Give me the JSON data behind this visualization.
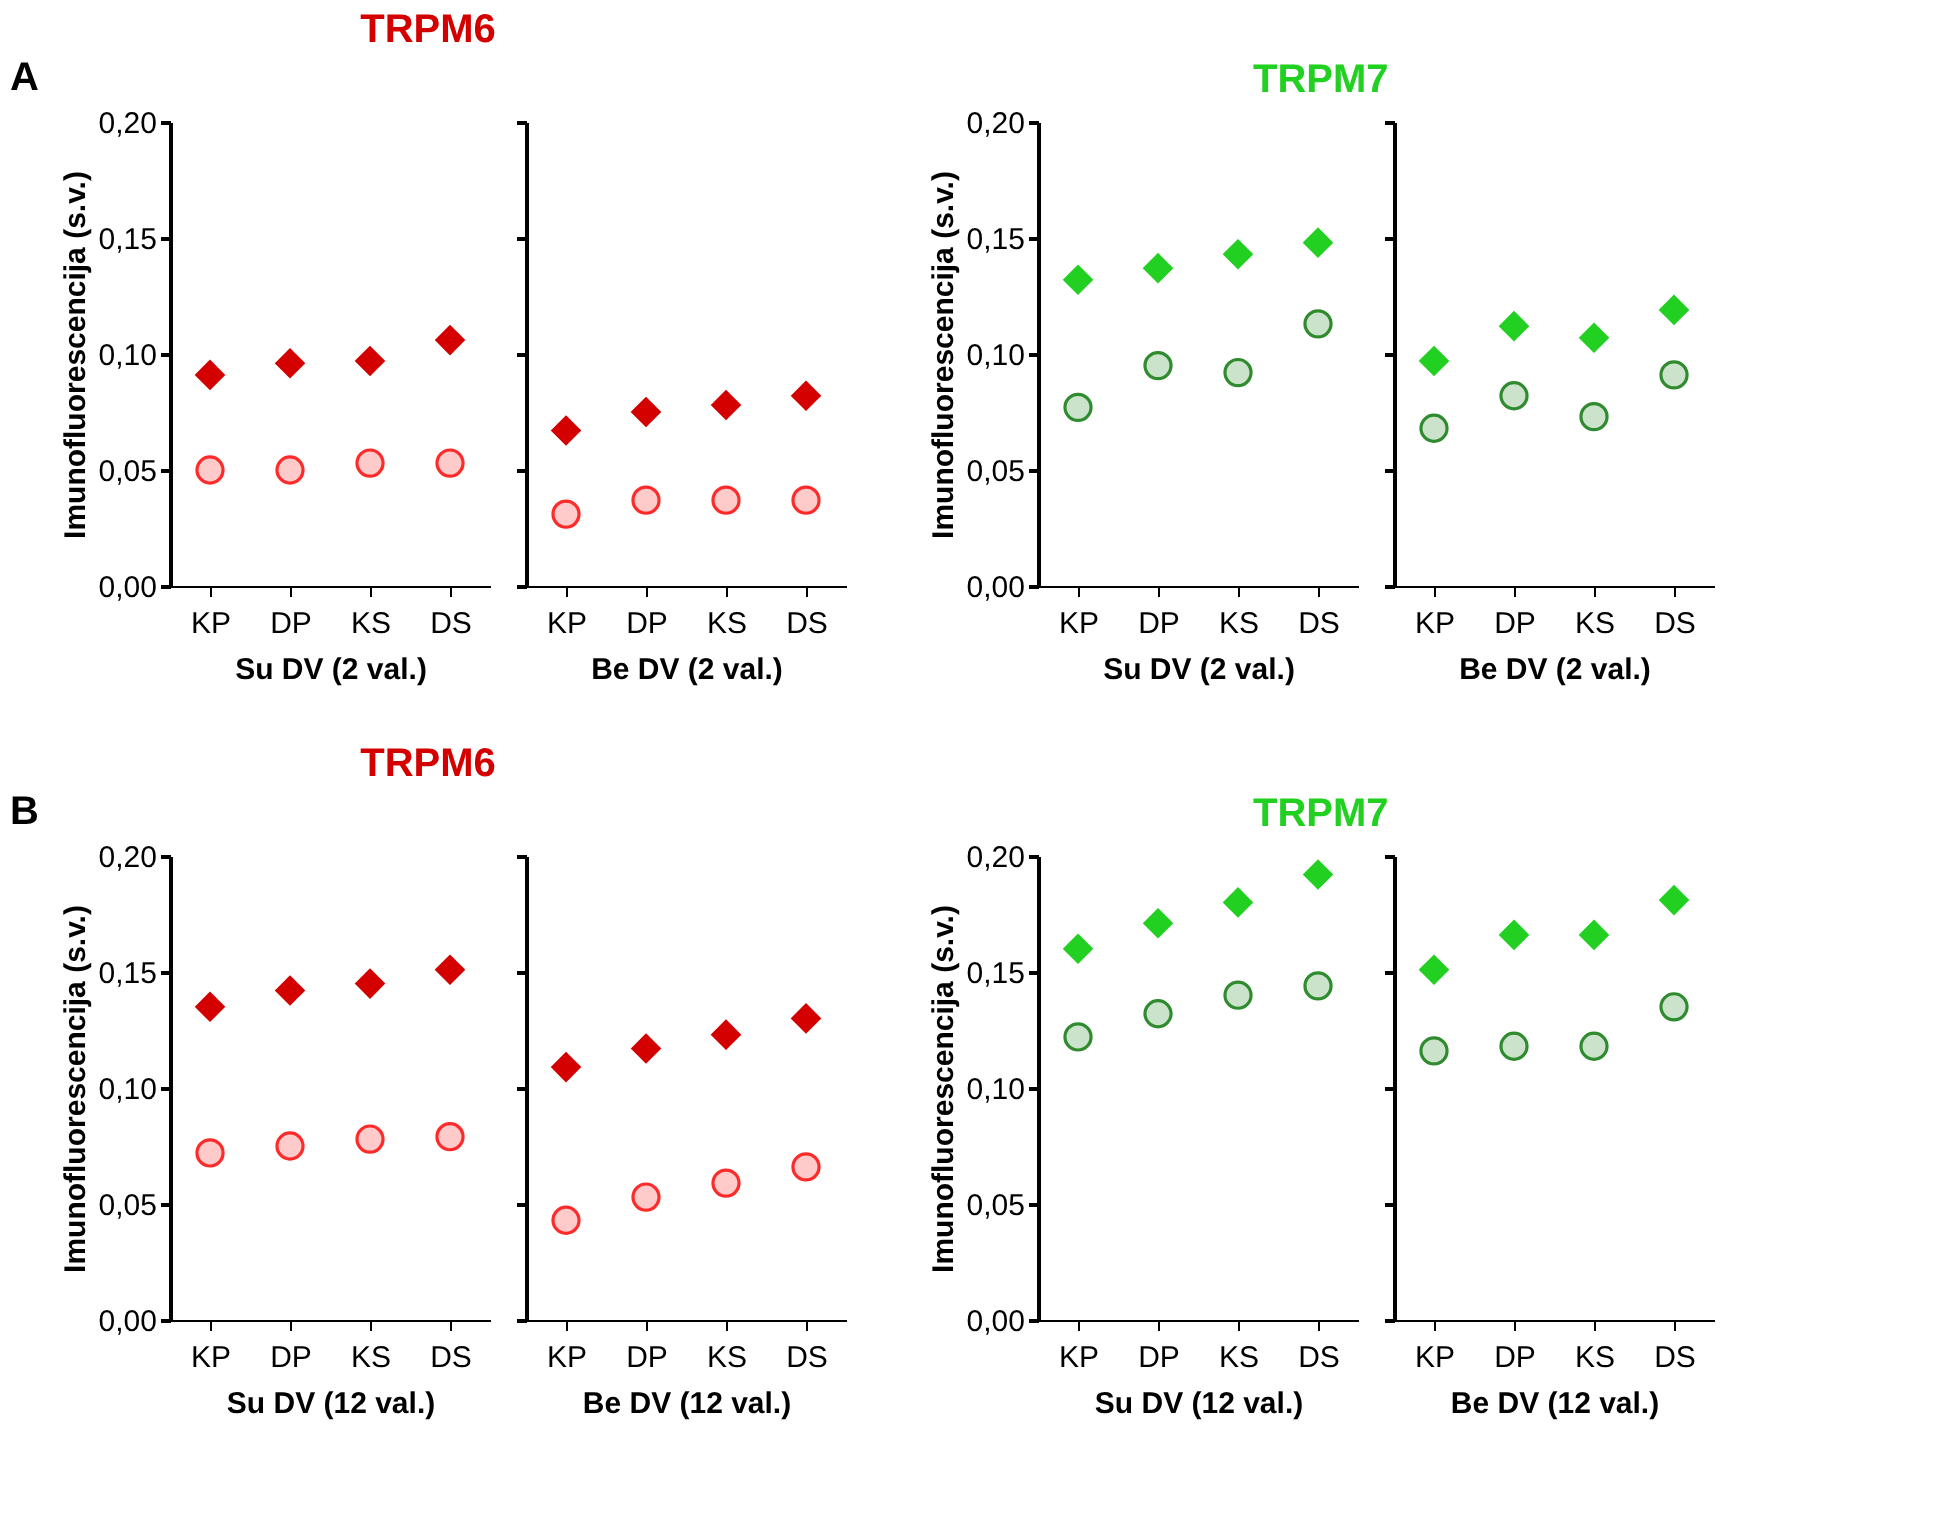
{
  "chart_data": [
    {
      "type": "scatter",
      "title": "TRPM6",
      "annotations": [
        "A"
      ],
      "xlabel": "Su DV (2 val.)",
      "ylabel": "Imunofluorescencija (s.v.)",
      "categories": [
        "KP",
        "DP",
        "KS",
        "DS"
      ],
      "ylim": [
        0,
        0.2
      ],
      "yticks": [
        {
          "value": 0,
          "label": "0,00"
        },
        {
          "value": 0.05,
          "label": "0,05"
        },
        {
          "value": 0.1,
          "label": "0,10"
        },
        {
          "value": 0.15,
          "label": "0,15"
        },
        {
          "value": 0.2,
          "label": "0,20"
        }
      ],
      "grid": false,
      "series": [
        {
          "color": "#d40000",
          "marker": "diamond",
          "values": [
            0.091,
            0.096,
            0.097,
            0.106
          ]
        },
        {
          "color": "#ff2a2a",
          "marker": "circle",
          "values": [
            0.05,
            0.05,
            0.053,
            0.053
          ]
        }
      ]
    },
    {
      "type": "scatter",
      "xlabel": "Be DV (2 val.)",
      "categories": [
        "KP",
        "DP",
        "KS",
        "DS"
      ],
      "ylim": [
        0,
        0.2
      ],
      "yticks": [
        {
          "value": 0,
          "label": null
        },
        {
          "value": 0.05,
          "label": null
        },
        {
          "value": 0.1,
          "label": null
        },
        {
          "value": 0.15,
          "label": null
        },
        {
          "value": 0.2,
          "label": null
        }
      ],
      "tick_labels": "x",
      "grid": false,
      "series": [
        {
          "color": "#d40000",
          "marker": "diamond",
          "values": [
            0.067,
            0.075,
            0.078,
            0.082
          ]
        },
        {
          "color": "#ff2a2a",
          "marker": "circle",
          "values": [
            0.031,
            0.037,
            0.037,
            0.037
          ]
        }
      ]
    },
    {
      "type": "scatter",
      "title": "TRPM7",
      "xlabel": "Su DV (2 val.)",
      "ylabel": "Imunofluorescencija (s.v.)",
      "categories": [
        "KP",
        "DP",
        "KS",
        "DS"
      ],
      "ylim": [
        0,
        0.2
      ],
      "yticks": [
        {
          "value": 0,
          "label": "0,00"
        },
        {
          "value": 0.05,
          "label": "0,05"
        },
        {
          "value": 0.1,
          "label": "0,10"
        },
        {
          "value": 0.15,
          "label": "0,15"
        },
        {
          "value": 0.2,
          "label": "0,20"
        }
      ],
      "grid": false,
      "series": [
        {
          "color": "#22d022",
          "marker": "diamond",
          "values": [
            0.132,
            0.137,
            0.143,
            0.148
          ]
        },
        {
          "color": "#2e8b2e",
          "marker": "circle",
          "values": [
            0.077,
            0.095,
            0.092,
            0.113
          ]
        }
      ]
    },
    {
      "type": "scatter",
      "xlabel": "Be DV (2 val.)",
      "categories": [
        "KP",
        "DP",
        "KS",
        "DS"
      ],
      "ylim": [
        0,
        0.2
      ],
      "yticks": [
        {
          "value": 0,
          "label": null
        },
        {
          "value": 0.05,
          "label": null
        },
        {
          "value": 0.1,
          "label": null
        },
        {
          "value": 0.15,
          "label": null
        },
        {
          "value": 0.2,
          "label": null
        }
      ],
      "tick_labels": "x",
      "grid": false,
      "series": [
        {
          "color": "#22d022",
          "marker": "diamond",
          "values": [
            0.097,
            0.112,
            0.107,
            0.119
          ]
        },
        {
          "color": "#2e8b2e",
          "marker": "circle",
          "values": [
            0.068,
            0.082,
            0.073,
            0.091
          ]
        }
      ]
    },
    {
      "type": "scatter",
      "title": "TRPM6",
      "annotations": [
        "B"
      ],
      "xlabel": "Su DV (12 val.)",
      "ylabel": "Imunofluorescencija (s.v.)",
      "categories": [
        "KP",
        "DP",
        "KS",
        "DS"
      ],
      "ylim": [
        0,
        0.2
      ],
      "yticks": [
        {
          "value": 0,
          "label": "0,00"
        },
        {
          "value": 0.05,
          "label": "0,05"
        },
        {
          "value": 0.1,
          "label": "0,10"
        },
        {
          "value": 0.15,
          "label": "0,15"
        },
        {
          "value": 0.2,
          "label": "0,20"
        }
      ],
      "grid": false,
      "series": [
        {
          "color": "#d40000",
          "marker": "diamond",
          "values": [
            0.135,
            0.142,
            0.145,
            0.151
          ]
        },
        {
          "color": "#ff2a2a",
          "marker": "circle",
          "values": [
            0.072,
            0.075,
            0.078,
            0.079
          ]
        }
      ]
    },
    {
      "type": "scatter",
      "xlabel": "Be DV (12 val.)",
      "categories": [
        "KP",
        "DP",
        "KS",
        "DS"
      ],
      "ylim": [
        0,
        0.2
      ],
      "yticks": [
        {
          "value": 0,
          "label": null
        },
        {
          "value": 0.05,
          "label": null
        },
        {
          "value": 0.1,
          "label": null
        },
        {
          "value": 0.15,
          "label": null
        },
        {
          "value": 0.2,
          "label": null
        }
      ],
      "tick_labels": "x",
      "grid": false,
      "series": [
        {
          "color": "#d40000",
          "marker": "diamond",
          "values": [
            0.109,
            0.117,
            0.123,
            0.13
          ]
        },
        {
          "color": "#ff2a2a",
          "marker": "circle",
          "values": [
            0.043,
            0.053,
            0.059,
            0.066
          ]
        }
      ]
    },
    {
      "type": "scatter",
      "title": "TRPM7",
      "xlabel": "Su DV (12 val.)",
      "ylabel": "Imunofluorescencija (s.v.)",
      "categories": [
        "KP",
        "DP",
        "KS",
        "DS"
      ],
      "ylim": [
        0,
        0.2
      ],
      "yticks": [
        {
          "value": 0,
          "label": "0,00"
        },
        {
          "value": 0.05,
          "label": "0,05"
        },
        {
          "value": 0.1,
          "label": "0,10"
        },
        {
          "value": 0.15,
          "label": "0,15"
        },
        {
          "value": 0.2,
          "label": "0,20"
        }
      ],
      "grid": false,
      "series": [
        {
          "color": "#22d022",
          "marker": "diamond",
          "values": [
            0.16,
            0.171,
            0.18,
            0.192
          ]
        },
        {
          "color": "#2e8b2e",
          "marker": "circle",
          "values": [
            0.122,
            0.132,
            0.14,
            0.144
          ]
        }
      ]
    },
    {
      "type": "scatter",
      "xlabel": "Be DV (12 val.)",
      "categories": [
        "KP",
        "DP",
        "KS",
        "DS"
      ],
      "ylim": [
        0,
        0.2
      ],
      "yticks": [
        {
          "value": 0,
          "label": null
        },
        {
          "value": 0.05,
          "label": null
        },
        {
          "value": 0.1,
          "label": null
        },
        {
          "value": 0.15,
          "label": null
        },
        {
          "value": 0.2,
          "label": null
        }
      ],
      "tick_labels": "x",
      "grid": false,
      "series": [
        {
          "color": "#22d022",
          "marker": "diamond",
          "values": [
            0.151,
            0.166,
            0.166,
            0.181
          ]
        },
        {
          "color": "#2e8b2e",
          "marker": "circle",
          "values": [
            0.116,
            0.118,
            0.118,
            0.135
          ]
        }
      ]
    }
  ]
}
